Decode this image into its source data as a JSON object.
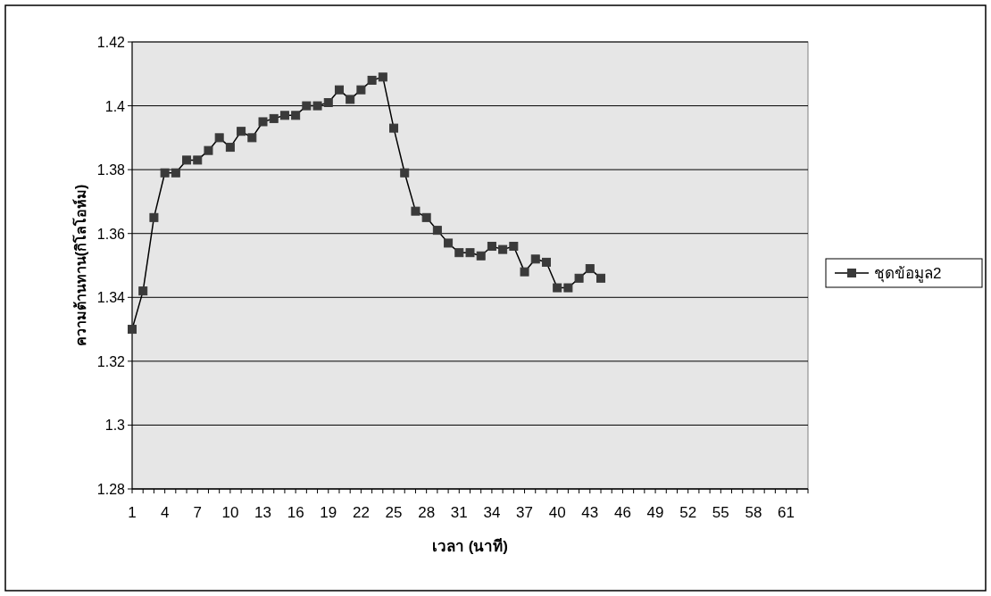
{
  "chart_data": {
    "type": "line",
    "xlabel": "เวลา (นาที)",
    "ylabel": "ความต้านทาน(กิโลโอห์ม)",
    "categories": [
      "1",
      null,
      null,
      "4",
      null,
      null,
      "7",
      null,
      null,
      "10",
      null,
      null,
      "13",
      null,
      null,
      "16",
      null,
      null,
      "19",
      null,
      null,
      "22",
      null,
      null,
      "25",
      null,
      null,
      "28",
      null,
      null,
      "31",
      null,
      null,
      "34",
      null,
      null,
      "37",
      null,
      null,
      "40",
      null,
      null,
      "43",
      null,
      null,
      "46",
      null,
      null,
      "49",
      null,
      null,
      "52",
      null,
      null,
      "55",
      null,
      null,
      "58",
      null,
      null,
      "61",
      null,
      null
    ],
    "series": [
      {
        "name": "ชุดข้อมูล2",
        "color": "#3a3a3a",
        "values": [
          1.33,
          1.342,
          1.365,
          1.379,
          1.379,
          1.383,
          1.383,
          1.386,
          1.39,
          1.387,
          1.392,
          1.39,
          1.395,
          1.396,
          1.397,
          1.397,
          1.4,
          1.4,
          1.401,
          1.405,
          1.402,
          1.405,
          1.408,
          1.409,
          1.393,
          1.379,
          1.367,
          1.365,
          1.361,
          1.357,
          1.354,
          1.354,
          1.353,
          1.356,
          1.355,
          1.356,
          1.348,
          1.352,
          1.351,
          1.343,
          1.343,
          1.346,
          1.349,
          1.346,
          null,
          null,
          null,
          null,
          null,
          null,
          null,
          null,
          null,
          null,
          null,
          null,
          null,
          null,
          null,
          null,
          null,
          null,
          null
        ]
      }
    ],
    "ylim": [
      1.28,
      1.42
    ],
    "yticks": [
      1.28,
      1.3,
      1.32,
      1.34,
      1.36,
      1.38,
      1.4,
      1.42
    ],
    "grid": "y",
    "legend": "right",
    "marker": "square",
    "line_style": "solid"
  }
}
